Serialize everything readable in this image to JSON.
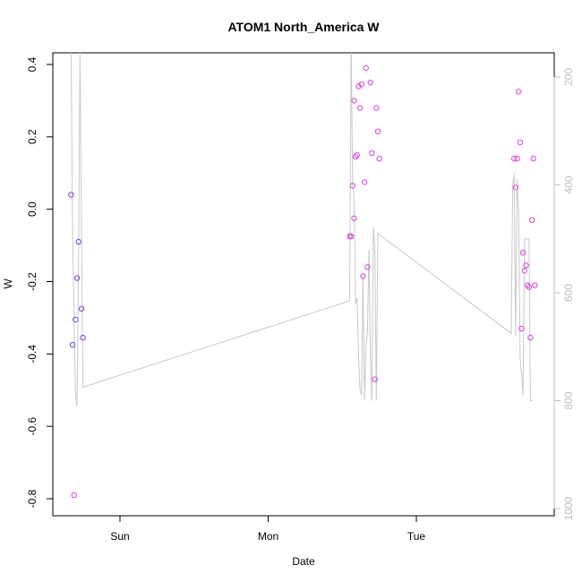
{
  "chart_data": {
    "type": "scatter",
    "title": "ATOM1 North_America W",
    "xlabel": "Date",
    "ylabel": "W",
    "grid": false,
    "x_axis": {
      "ticks": [
        "Sun",
        "Mon",
        "Tue"
      ],
      "range_days": [
        -0.45,
        2.9
      ]
    },
    "y_axis": {
      "range": [
        -0.83,
        0.42
      ],
      "ticks": [
        -0.8,
        -0.6,
        -0.4,
        -0.2,
        0.0,
        0.2,
        0.4
      ],
      "tick_labels": [
        "-0.8",
        "-0.6",
        "-0.4",
        "-0.2",
        "0.0",
        "0.2",
        "0.4"
      ]
    },
    "y_axis_right": {
      "range": [
        1012,
        178
      ],
      "ticks": [
        200,
        400,
        600,
        800,
        1000
      ],
      "tick_labels": [
        "200",
        "400",
        "600",
        "800",
        "1000"
      ],
      "color": "#bebebe"
    },
    "series": [
      {
        "kind": "points",
        "color": "#7b3ff2",
        "x": [
          -0.33,
          -0.32,
          -0.3,
          -0.29,
          -0.28,
          -0.26,
          -0.25
        ],
        "y": [
          0.04,
          -0.375,
          -0.305,
          -0.19,
          -0.09,
          -0.275,
          -0.355
        ]
      },
      {
        "kind": "points",
        "color": "#e040e0",
        "x": [
          -0.31,
          1.56,
          1.57,
          1.58,
          1.58,
          1.59,
          1.6,
          1.61,
          1.62,
          1.63,
          1.64,
          1.65,
          1.66,
          1.67,
          1.69,
          1.7,
          1.72,
          1.73,
          1.74,
          1.75,
          1.55,
          2.66,
          2.67,
          2.68,
          2.69,
          2.7,
          2.71,
          2.72,
          2.73,
          2.74,
          2.75,
          2.76,
          2.77,
          2.78,
          2.79,
          2.8
        ],
        "y": [
          -0.79,
          -0.075,
          0.065,
          0.3,
          -0.025,
          0.145,
          0.15,
          0.34,
          0.28,
          0.345,
          -0.185,
          0.075,
          0.39,
          -0.16,
          0.35,
          0.155,
          -0.47,
          0.28,
          0.215,
          0.14,
          -0.075,
          0.14,
          0.06,
          0.14,
          0.325,
          0.185,
          -0.33,
          -0.12,
          -0.17,
          -0.155,
          -0.21,
          -0.215,
          -0.355,
          -0.03,
          0.14,
          -0.21
        ],
        "note_skip_first_in_right": false
      },
      {
        "kind": "line",
        "axis": "right",
        "color": "#c8c8c8",
        "x": [
          -0.34,
          -0.33,
          -0.32,
          -0.3,
          -0.29,
          -0.28,
          -0.27,
          -0.25,
          1.55,
          1.56,
          1.57,
          1.58,
          1.59,
          1.6,
          1.61,
          1.62,
          1.63,
          1.64,
          1.65,
          1.66,
          1.67,
          1.68,
          1.69,
          1.7,
          1.71,
          1.72,
          1.73,
          1.74,
          2.64,
          2.65,
          2.66,
          2.67,
          2.68,
          2.69,
          2.7,
          2.71,
          2.72,
          2.73,
          2.74,
          2.75,
          2.76,
          2.77,
          2.78
        ],
        "y": [
          150,
          150,
          480,
          790,
          810,
          560,
          150,
          775,
          615,
          130,
          400,
          420,
          620,
          610,
          720,
          780,
          790,
          570,
          800,
          700,
          670,
          520,
          720,
          800,
          480,
          520,
          800,
          490,
          675,
          400,
          380,
          680,
          390,
          450,
          720,
          750,
          790,
          500,
          500,
          500,
          500,
          800,
          800
        ]
      }
    ]
  }
}
